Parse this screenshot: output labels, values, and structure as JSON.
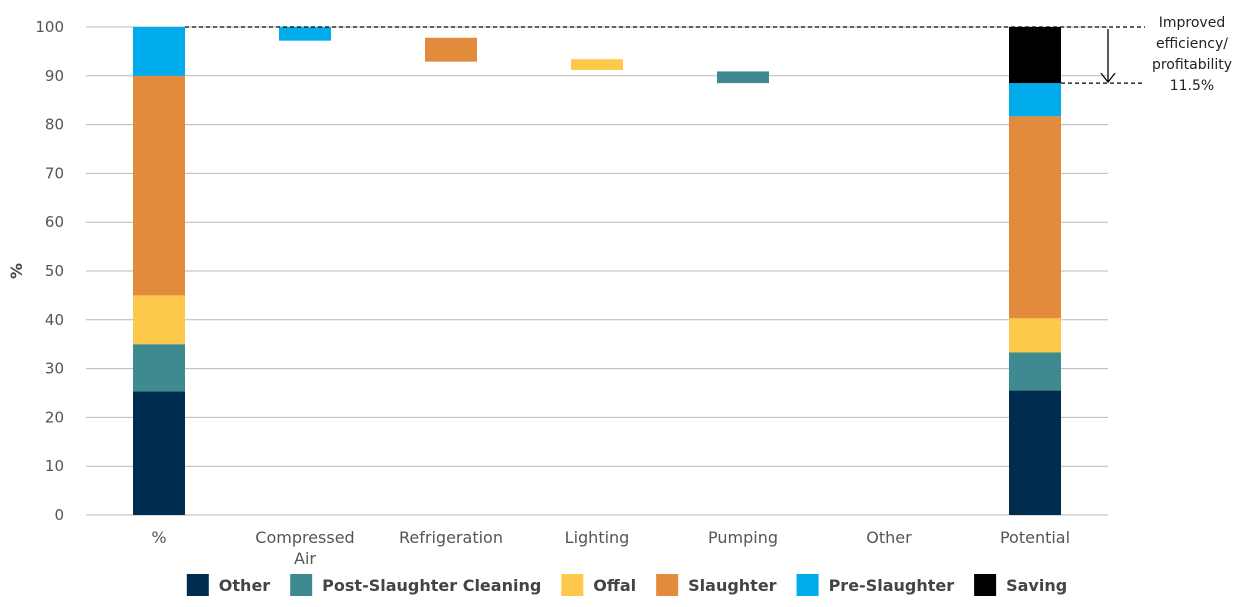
{
  "chart_data": {
    "type": "bar",
    "subtype": "stacked-waterfall",
    "ylabel": "%",
    "ylim": [
      0,
      100
    ],
    "yticks": [
      0,
      10,
      20,
      30,
      40,
      50,
      60,
      70,
      80,
      90,
      100
    ],
    "grid": true,
    "legend_position": "bottom",
    "categories": [
      "%",
      "Compressed Air",
      "Refrigeration",
      "Lighting",
      "Pumping",
      "Other",
      "Potential"
    ],
    "stack_order": [
      "Other",
      "Post-Slaughter Cleaning",
      "Offal",
      "Slaughter",
      "Pre-Slaughter",
      "Saving"
    ],
    "series": [
      {
        "name": "Other",
        "color": "#002D4F"
      },
      {
        "name": "Post-Slaughter Cleaning",
        "color": "#3E8A90"
      },
      {
        "name": "Offal",
        "color": "#FEC84B"
      },
      {
        "name": "Slaughter",
        "color": "#E28B3C"
      },
      {
        "name": "Pre-Slaughter",
        "color": "#00ACEC"
      },
      {
        "name": "Saving",
        "color": "#000000"
      }
    ],
    "stacked_bars": [
      {
        "category": "%",
        "values": {
          "Other": 25.3,
          "Post-Slaughter Cleaning": 9.7,
          "Offal": 10,
          "Slaughter": 45,
          "Pre-Slaughter": 10
        }
      },
      {
        "category": "Potential",
        "values": {
          "Other": 25.5,
          "Post-Slaughter Cleaning": 7.8,
          "Offal": 7,
          "Slaughter": 41.4,
          "Pre-Slaughter": 6.8,
          "Saving": 11.5
        }
      }
    ],
    "floating_bars": [
      {
        "category": "Compressed Air",
        "series": "Pre-Slaughter",
        "from": 97.2,
        "to": 100
      },
      {
        "category": "Refrigeration",
        "series": "Slaughter",
        "from": 92.9,
        "to": 97.8
      },
      {
        "category": "Lighting",
        "series": "Offal",
        "from": 91.2,
        "to": 93.4
      },
      {
        "category": "Pumping",
        "series": "Post-Slaughter Cleaning",
        "from": 88.5,
        "to": 90.9
      },
      {
        "category": "Other",
        "series": "Other",
        "from": 88.5,
        "to": 88.5
      }
    ],
    "reference_lines": [
      {
        "y": 100,
        "style": "dashed"
      },
      {
        "y": 88.5,
        "style": "dashed"
      }
    ],
    "annotation": {
      "lines": [
        "Improved",
        "efficiency/",
        "profitability",
        "11.5%"
      ],
      "from": 100,
      "to": 88.5
    }
  }
}
